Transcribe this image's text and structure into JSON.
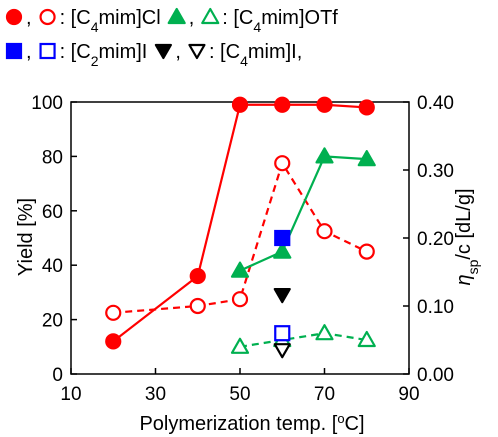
{
  "chart_data": {
    "type": "scatter",
    "x_axis": {
      "label": "Polymerization temp. [°C]",
      "range": [
        10,
        90
      ],
      "ticks": [
        10,
        30,
        50,
        70,
        90
      ]
    },
    "y_axis_left": {
      "label": "Yield [%]",
      "range": [
        0,
        100
      ],
      "ticks": [
        0,
        20,
        40,
        60,
        80,
        100
      ]
    },
    "y_axis_right": {
      "label": "η sp/c [dL/g]",
      "range": [
        0.0,
        0.4
      ],
      "ticks": [
        "0.00",
        "0.10",
        "0.20",
        "0.30",
        "0.40"
      ]
    },
    "grid": false,
    "legend_position": "top",
    "legend": {
      "row1": [
        {
          "marker": "filled-circle",
          "color": "#ff0000"
        },
        {
          "text": ","
        },
        {
          "marker": "open-circle",
          "color": "#ff0000"
        },
        {
          "text": ": [C4mim]Cl"
        },
        {
          "marker": "filled-triangle",
          "color": "#00b050"
        },
        {
          "text": ","
        },
        {
          "marker": "open-triangle",
          "color": "#00b050"
        },
        {
          "text": ": [C4mim]OTf"
        }
      ],
      "row2": [
        {
          "marker": "filled-square",
          "color": "#0000ff"
        },
        {
          "text": ","
        },
        {
          "marker": "open-square",
          "color": "#0000ff"
        },
        {
          "text": ": [C2mim]I"
        },
        {
          "marker": "filled-down-triangle",
          "color": "#000000"
        },
        {
          "text": ","
        },
        {
          "marker": "open-down-triangle",
          "color": "#000000"
        },
        {
          "text": ": [C4mim]I,"
        }
      ]
    },
    "series": [
      {
        "name": "[C4mim]Cl",
        "quantity": "Yield [%]",
        "axis": "left",
        "marker": "filled-circle",
        "color": "#ff0000",
        "line": "solid",
        "x": [
          20,
          40,
          50,
          60,
          70,
          80
        ],
        "y": [
          12,
          36,
          99,
          99,
          99,
          98
        ]
      },
      {
        "name": "[C4mim]Cl",
        "quantity": "η sp/c [dL/g]",
        "axis": "right",
        "marker": "open-circle",
        "color": "#ff0000",
        "line": "dashed",
        "x": [
          20,
          40,
          50,
          60,
          70,
          80
        ],
        "y": [
          0.09,
          0.1,
          0.11,
          0.31,
          0.21,
          0.18
        ]
      },
      {
        "name": "[C4mim]OTf",
        "quantity": "Yield [%]",
        "axis": "left",
        "marker": "filled-triangle",
        "color": "#00b050",
        "line": "solid",
        "x": [
          50,
          60,
          70,
          80
        ],
        "y": [
          38,
          45,
          80,
          79
        ]
      },
      {
        "name": "[C4mim]OTf",
        "quantity": "η sp/c [dL/g]",
        "axis": "right",
        "marker": "open-triangle",
        "color": "#00b050",
        "line": "dashed",
        "x": [
          50,
          60,
          70,
          80
        ],
        "y": [
          0.04,
          0.05,
          0.06,
          0.05
        ]
      },
      {
        "name": "[C2mim]I",
        "quantity": "Yield [%]",
        "axis": "left",
        "marker": "filled-square",
        "color": "#0000ff",
        "line": "none",
        "x": [
          60
        ],
        "y": [
          50
        ]
      },
      {
        "name": "[C2mim]I",
        "quantity": "η sp/c [dL/g]",
        "axis": "right",
        "marker": "open-square",
        "color": "#0000ff",
        "line": "none",
        "x": [
          60
        ],
        "y": [
          0.06
        ]
      },
      {
        "name": "[C4mim]I",
        "quantity": "Yield [%]",
        "axis": "left",
        "marker": "filled-down-triangle",
        "color": "#000000",
        "line": "none",
        "x": [
          60
        ],
        "y": [
          29
        ]
      },
      {
        "name": "[C4mim]I",
        "quantity": "η sp/c [dL/g]",
        "axis": "right",
        "marker": "open-down-triangle",
        "color": "#000000",
        "line": "none",
        "x": [
          60
        ],
        "y": [
          0.035
        ]
      }
    ]
  }
}
